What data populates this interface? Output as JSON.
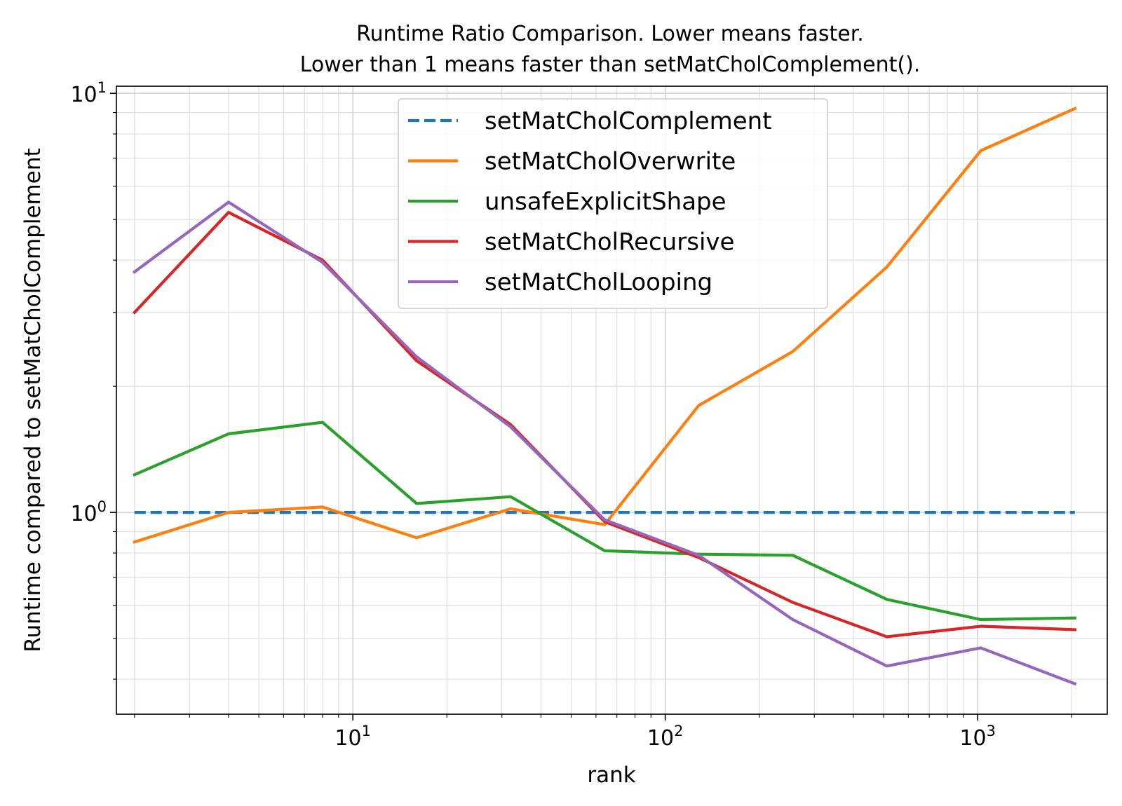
{
  "chart_data": {
    "type": "line",
    "title": "Runtime Ratio Comparison. Lower means faster.",
    "subtitle": "Lower than 1 means faster than setMatCholComplement().",
    "xlabel": "rank",
    "ylabel": "Runtime compared to setMatCholComplement",
    "xscale": "log",
    "yscale": "log",
    "xlim": [
      1.75,
      2600
    ],
    "ylim": [
      0.33,
      10.4
    ],
    "x_ticks": [
      {
        "value": 10,
        "base": "10",
        "exp": "1"
      },
      {
        "value": 100,
        "base": "10",
        "exp": "2"
      },
      {
        "value": 1000,
        "base": "10",
        "exp": "3"
      }
    ],
    "y_ticks": [
      {
        "value": 1,
        "base": "10",
        "exp": "0"
      },
      {
        "value": 10,
        "base": "10",
        "exp": "1"
      }
    ],
    "grid": true,
    "legend_position": "top-center",
    "x": [
      2,
      4,
      8,
      16,
      32,
      64,
      128,
      256,
      512,
      1024,
      2048
    ],
    "series": [
      {
        "name": "setMatCholComplement",
        "color": "#1f77b4",
        "dash": true,
        "values": [
          1,
          1,
          1,
          1,
          1,
          1,
          1,
          1,
          1,
          1,
          1
        ]
      },
      {
        "name": "setMatCholOverwrite",
        "color": "#ff7f0e",
        "dash": false,
        "values": [
          0.85,
          1.0,
          1.03,
          0.87,
          1.02,
          0.935,
          1.8,
          2.42,
          3.85,
          7.3,
          9.2
        ]
      },
      {
        "name": "unsafeExplicitShape",
        "color": "#2ca02c",
        "dash": false,
        "values": [
          1.23,
          1.54,
          1.64,
          1.05,
          1.09,
          0.81,
          0.795,
          0.79,
          0.62,
          0.555,
          0.56
        ]
      },
      {
        "name": "setMatCholRecursive",
        "color": "#d62728",
        "dash": false,
        "values": [
          3.0,
          5.2,
          4.0,
          2.3,
          1.62,
          0.95,
          0.78,
          0.61,
          0.505,
          0.535,
          0.525
        ]
      },
      {
        "name": "setMatCholLooping",
        "color": "#9467bd",
        "dash": false,
        "values": [
          3.75,
          5.5,
          3.95,
          2.35,
          1.6,
          0.96,
          0.79,
          0.555,
          0.43,
          0.475,
          0.39
        ]
      }
    ]
  }
}
